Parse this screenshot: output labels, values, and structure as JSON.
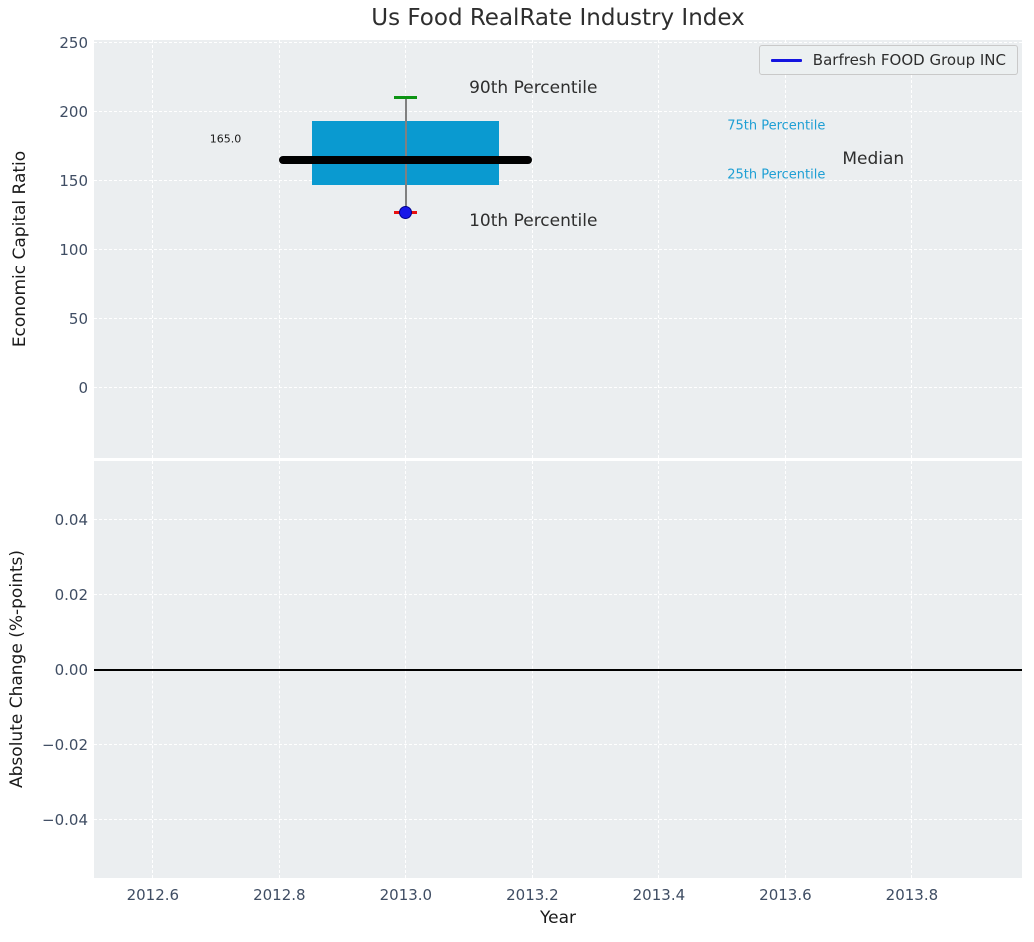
{
  "figure": {
    "title": "Us Food RealRate Industry Index"
  },
  "legend": {
    "label": "Barfresh FOOD Group INC",
    "line_color": "#1414e0"
  },
  "colors": {
    "figure_bg": "#ffffff",
    "axes_bg": "#ebeef0",
    "grid": "#ffffff",
    "tick_label": "#3f4d63",
    "title": "#2e2e2e",
    "axis_label": "#1a1a1a",
    "box_fill": "#0a9ad0",
    "whisker": "#808080",
    "median": "#000000",
    "cap_90": "#0d9414",
    "cap_10": "#e81010",
    "dot_10": "#1717e8",
    "dot_edge": "#00008b",
    "zero_line": "#000000",
    "legend_border": "#c9c9c9",
    "legend_bg": "#eceff1",
    "percentile_label": "#1e9fd4"
  },
  "chart_data": [
    {
      "type": "boxplot",
      "id": "economic-capital-ratio",
      "title": "Us Food RealRate Industry Index",
      "ylabel": "Economic Capital Ratio",
      "xlim": [
        2012.507,
        2013.974
      ],
      "ylim": [
        -51,
        252
      ],
      "yticks": [
        250,
        200,
        150,
        100,
        50,
        0
      ],
      "ytick_labels": [
        "250",
        "200",
        "150",
        "100",
        "50",
        "0"
      ],
      "xticks": [
        2012.6,
        2012.8,
        2013.0,
        2013.2,
        2013.4,
        2013.6,
        2013.8
      ],
      "grid": true,
      "legend_position": "upper-right",
      "legend_entries": [
        "Barfresh FOOD Group INC"
      ],
      "box": {
        "name": "Barfresh FOOD Group INC",
        "x": 2013.0,
        "p10": 127,
        "p25": 147,
        "median": 165,
        "p75": 193,
        "p90": 210,
        "median_label": "165.0",
        "box_half_width": 0.148,
        "median_half_width": 0.2,
        "cap_half_width": 0.018
      },
      "annotations": [
        {
          "text": "165.0",
          "x": 2012.69,
          "y": 180,
          "size": 11,
          "color": "#1a1a1a"
        },
        {
          "text": "90th Percentile",
          "x": 2013.1,
          "y": 217,
          "size": 17,
          "color": "#2e2e2e"
        },
        {
          "text": "10th Percentile",
          "x": 2013.1,
          "y": 121,
          "size": 17,
          "color": "#2e2e2e"
        },
        {
          "text": "75th Percentile",
          "x": 2013.508,
          "y": 190,
          "size": 13,
          "color": "#1e9fd4"
        },
        {
          "text": "25th Percentile",
          "x": 2013.508,
          "y": 154,
          "size": 13,
          "color": "#1e9fd4"
        },
        {
          "text": "Median",
          "x": 2013.69,
          "y": 166,
          "size": 17,
          "color": "#2e2e2e"
        }
      ]
    },
    {
      "type": "line",
      "id": "absolute-change",
      "ylabel": "Absolute Change (%-points)",
      "xlabel": "Year",
      "xlim": [
        2012.507,
        2013.974
      ],
      "ylim": [
        -0.0555,
        0.0557
      ],
      "yticks": [
        0.04,
        0.02,
        0,
        -0.02,
        -0.04
      ],
      "ytick_labels": [
        "0.04",
        "0.02",
        "0.00",
        "−0.02",
        "−0.04"
      ],
      "xticks": [
        2012.6,
        2012.8,
        2013.0,
        2013.2,
        2013.4,
        2013.6,
        2013.8
      ],
      "xtick_labels": [
        "2012.6",
        "2012.8",
        "2013.0",
        "2013.2",
        "2013.4",
        "2013.6",
        "2013.8"
      ],
      "grid": true,
      "zero_line": 0.0,
      "series": []
    }
  ]
}
